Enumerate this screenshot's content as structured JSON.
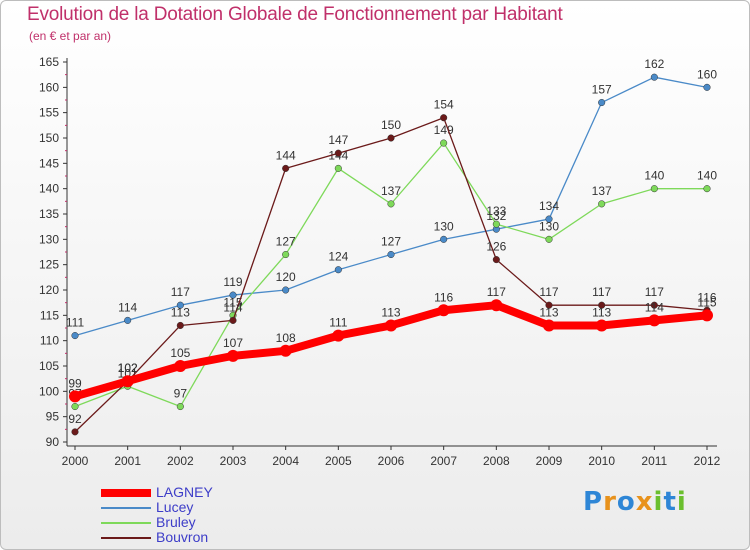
{
  "title": "Evolution de la Dotation Globale de Fonctionnement par Habitant",
  "subtitle": "(en € et par an)",
  "brand": {
    "text": "Proxiti",
    "letters": [
      {
        "char": "P",
        "color": "#2e86d6"
      },
      {
        "char": "r",
        "color": "#e8921c"
      },
      {
        "char": "o",
        "color": "#2e86d6"
      },
      {
        "char": "x",
        "color": "#e8921c"
      },
      {
        "char": "i",
        "color": "#6bbf2e"
      },
      {
        "char": "t",
        "color": "#2e86d6"
      },
      {
        "char": "i",
        "color": "#6bbf2e"
      }
    ]
  },
  "chart_data": {
    "type": "line",
    "x": [
      "2000",
      "2001",
      "2002",
      "2003",
      "2004",
      "2005",
      "2006",
      "2007",
      "2008",
      "2009",
      "2010",
      "2011",
      "2012"
    ],
    "ylim": [
      90,
      165
    ],
    "yticks": [
      90,
      95,
      100,
      105,
      110,
      115,
      120,
      125,
      130,
      135,
      140,
      145,
      150,
      155,
      160,
      165
    ],
    "grid": false,
    "legend_position": "bottom-left",
    "series": [
      {
        "name": "LAGNEY",
        "color": "#ff0000",
        "values": [
          99,
          102,
          105,
          107,
          108,
          111,
          113,
          116,
          117,
          113,
          113,
          114,
          115
        ]
      },
      {
        "name": "Lucey",
        "color": "#4a8ac8",
        "values": [
          111,
          114,
          117,
          119,
          120,
          124,
          127,
          130,
          132,
          134,
          157,
          162,
          160
        ]
      },
      {
        "name": "Bruley",
        "color": "#7ed95a",
        "values": [
          97,
          101,
          97,
          115,
          127,
          144,
          137,
          149,
          133,
          130,
          137,
          140,
          140
        ]
      },
      {
        "name": "Bouvron",
        "color": "#6b1a1a",
        "values": [
          92,
          102,
          113,
          114,
          144,
          147,
          150,
          154,
          126,
          117,
          117,
          117,
          116
        ]
      }
    ]
  }
}
